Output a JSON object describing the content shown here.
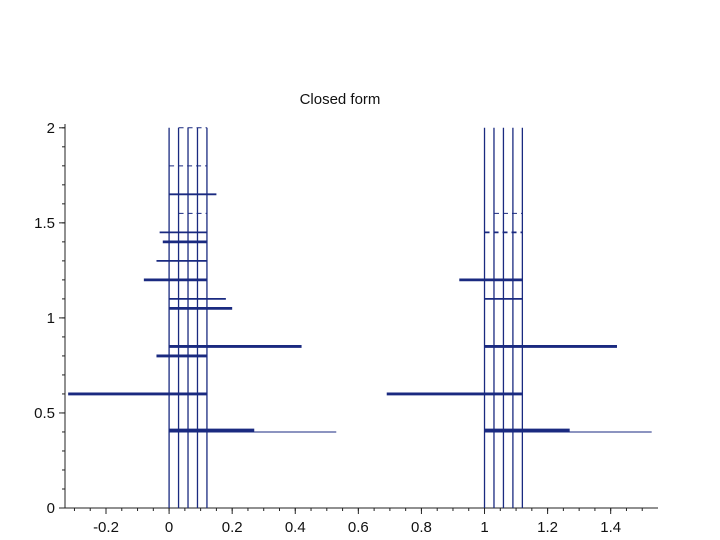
{
  "chart_data": {
    "type": "line",
    "title": "Closed form",
    "xlabel": "",
    "ylabel": "",
    "xlim": [
      -0.33,
      1.55
    ],
    "ylim": [
      0,
      2.02
    ],
    "grid": false,
    "x_ticks": [
      {
        "value": -0.2,
        "label": "-0.2"
      },
      {
        "value": 0,
        "label": "0"
      },
      {
        "value": 0.2,
        "label": "0.2"
      },
      {
        "value": 0.4,
        "label": "0.4"
      },
      {
        "value": 0.6,
        "label": "0.6"
      },
      {
        "value": 0.8,
        "label": "0.8"
      },
      {
        "value": 1,
        "label": "1"
      },
      {
        "value": 1.2,
        "label": "1.2"
      },
      {
        "value": 1.4,
        "label": "1.4"
      }
    ],
    "y_ticks": [
      {
        "value": 0,
        "label": "0"
      },
      {
        "value": 0.5,
        "label": "0.5"
      },
      {
        "value": 1,
        "label": "1"
      },
      {
        "value": 1.5,
        "label": "1.5"
      },
      {
        "value": 2,
        "label": "2"
      }
    ],
    "colors": {
      "series": "#1a2a80",
      "axis": "#222222",
      "text": "#111111"
    },
    "vertical_lines": {
      "x": [
        0,
        0.03,
        0.06,
        0.09,
        0.12,
        1.0,
        1.03,
        1.06,
        1.09,
        1.12
      ],
      "y_range": [
        0,
        2.0
      ]
    },
    "horizontal_segments": [
      {
        "y": 2.0,
        "x": [
          0.03,
          0.12
        ],
        "style": "dashed",
        "weight": "thin"
      },
      {
        "y": 1.8,
        "x": [
          0.0,
          0.12
        ],
        "style": "dashed",
        "weight": "thin"
      },
      {
        "y": 1.65,
        "x": [
          0.0,
          0.15
        ],
        "style": "solid",
        "weight": "medium"
      },
      {
        "y": 1.55,
        "x": [
          0.03,
          0.12
        ],
        "style": "dashed",
        "weight": "thin"
      },
      {
        "y": 1.45,
        "x": [
          -0.03,
          0.12
        ],
        "style": "solid",
        "weight": "medium"
      },
      {
        "y": 1.4,
        "x": [
          -0.02,
          0.12
        ],
        "style": "solid",
        "weight": "thick"
      },
      {
        "y": 1.3,
        "x": [
          -0.04,
          0.12
        ],
        "style": "solid",
        "weight": "medium"
      },
      {
        "y": 1.2,
        "x": [
          -0.08,
          0.12
        ],
        "style": "solid",
        "weight": "thick"
      },
      {
        "y": 1.1,
        "x": [
          0.0,
          0.18
        ],
        "style": "solid",
        "weight": "medium"
      },
      {
        "y": 1.05,
        "x": [
          0.0,
          0.2
        ],
        "style": "solid",
        "weight": "thick"
      },
      {
        "y": 0.85,
        "x": [
          0.0,
          0.42
        ],
        "style": "solid",
        "weight": "thick"
      },
      {
        "y": 0.8,
        "x": [
          -0.04,
          0.12
        ],
        "style": "solid",
        "weight": "thick"
      },
      {
        "y": 0.6,
        "x": [
          -0.32,
          0.12
        ],
        "style": "solid",
        "weight": "thick"
      },
      {
        "y": 0.41,
        "x": [
          0.0,
          0.27
        ],
        "style": "solid",
        "weight": "thick"
      },
      {
        "y": 0.4,
        "x": [
          0.0,
          0.53
        ],
        "style": "solid",
        "weight": "thin"
      },
      {
        "y": 1.55,
        "x": [
          1.03,
          1.12
        ],
        "style": "dashed",
        "weight": "thin"
      },
      {
        "y": 1.45,
        "x": [
          1.0,
          1.12
        ],
        "style": "dashed",
        "weight": "medium"
      },
      {
        "y": 1.2,
        "x": [
          0.92,
          1.12
        ],
        "style": "solid",
        "weight": "thick"
      },
      {
        "y": 1.1,
        "x": [
          1.0,
          1.12
        ],
        "style": "solid",
        "weight": "medium"
      },
      {
        "y": 0.85,
        "x": [
          1.0,
          1.42
        ],
        "style": "solid",
        "weight": "thick"
      },
      {
        "y": 0.6,
        "x": [
          0.69,
          1.12
        ],
        "style": "solid",
        "weight": "thick"
      },
      {
        "y": 0.41,
        "x": [
          1.0,
          1.27
        ],
        "style": "solid",
        "weight": "thick"
      },
      {
        "y": 0.4,
        "x": [
          1.0,
          1.53
        ],
        "style": "solid",
        "weight": "thin"
      }
    ]
  }
}
